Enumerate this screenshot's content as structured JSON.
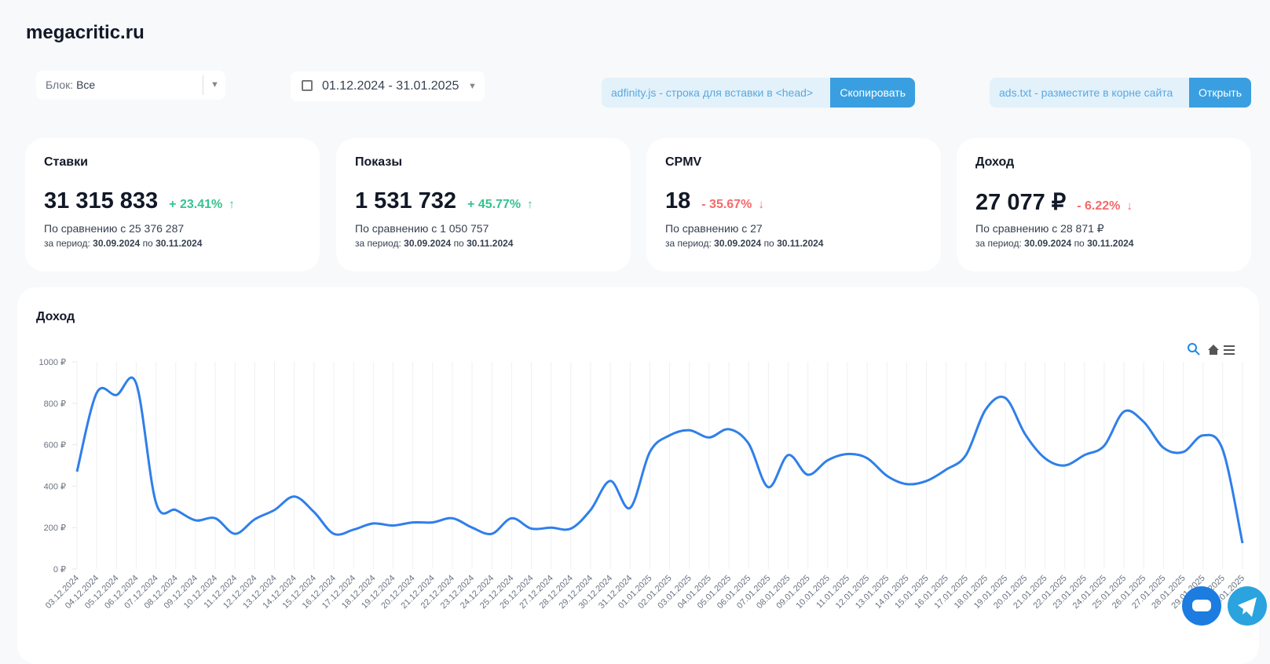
{
  "header": {
    "site": "megacritic.ru"
  },
  "filters": {
    "block_label": "Блок:",
    "block_value": "Все",
    "date_range": "01.12.2024 - 31.01.2025"
  },
  "snippets": [
    {
      "text": "adfinity.js - строка для вставки в <head>",
      "button": "Скопировать"
    },
    {
      "text": "ads.txt - разместите в корне сайта",
      "button": "Открыть"
    }
  ],
  "cards": [
    {
      "title": "Ставки",
      "value": "31 315 833",
      "change": "+ 23.41%",
      "trend": "up",
      "compare": "По сравнению с 25 376 287",
      "period_label": "за период:",
      "period_from": "30.09.2024",
      "period_sep": "по",
      "period_to": "30.11.2024"
    },
    {
      "title": "Показы",
      "value": "1 531 732",
      "change": "+ 45.77%",
      "trend": "up",
      "compare": "По сравнению с 1 050 757",
      "period_label": "за период:",
      "period_from": "30.09.2024",
      "period_sep": "по",
      "period_to": "30.11.2024"
    },
    {
      "title": "CPMV",
      "value": "18",
      "change": "- 35.67%",
      "trend": "down",
      "compare": "По сравнению с 27",
      "period_label": "за период:",
      "period_from": "30.09.2024",
      "period_sep": "по",
      "period_to": "30.11.2024"
    },
    {
      "title": "Доход",
      "value": "27 077 ₽",
      "change": "- 6.22%",
      "trend": "down",
      "compare": "По сравнению с 28 871 ₽",
      "period_label": "за период:",
      "period_from": "30.09.2024",
      "period_sep": "по",
      "period_to": "30.11.2024"
    }
  ],
  "chart_data": {
    "type": "line",
    "title": "Доход",
    "categories": [
      "03.12.2024",
      "04.12.2024",
      "05.12.2024",
      "06.12.2024",
      "07.12.2024",
      "08.12.2024",
      "09.12.2024",
      "10.12.2024",
      "11.12.2024",
      "12.12.2024",
      "13.12.2024",
      "14.12.2024",
      "15.12.2024",
      "16.12.2024",
      "17.12.2024",
      "18.12.2024",
      "19.12.2024",
      "20.12.2024",
      "21.12.2024",
      "22.12.2024",
      "23.12.2024",
      "24.12.2024",
      "25.12.2024",
      "26.12.2024",
      "27.12.2024",
      "28.12.2024",
      "29.12.2024",
      "30.12.2024",
      "31.12.2024",
      "01.01.2025",
      "02.01.2025",
      "03.01.2025",
      "04.01.2025",
      "05.01.2025",
      "06.01.2025",
      "07.01.2025",
      "08.01.2025",
      "09.01.2025",
      "10.01.2025",
      "11.01.2025",
      "12.01.2025",
      "13.01.2025",
      "14.01.2025",
      "15.01.2025",
      "16.01.2025",
      "17.01.2025",
      "18.01.2025",
      "19.01.2025",
      "20.01.2025",
      "21.01.2025",
      "22.01.2025",
      "23.01.2025",
      "24.01.2025",
      "25.01.2025",
      "26.01.2025",
      "27.01.2025",
      "28.01.2025",
      "29.01.2025",
      "30.01.2025",
      "31.01.2025"
    ],
    "series": [
      {
        "name": "Доход",
        "color": "#2f7fea",
        "values": [
          470,
          850,
          840,
          895,
          320,
          285,
          235,
          245,
          170,
          240,
          285,
          350,
          275,
          170,
          190,
          220,
          210,
          225,
          225,
          245,
          200,
          170,
          245,
          195,
          200,
          195,
          285,
          425,
          295,
          565,
          645,
          670,
          635,
          675,
          605,
          395,
          550,
          455,
          525,
          555,
          535,
          450,
          410,
          425,
          480,
          550,
          770,
          825,
          650,
          535,
          500,
          550,
          595,
          760,
          710,
          585,
          565,
          645,
          575,
          125
        ]
      }
    ],
    "ylim": [
      0,
      1000
    ],
    "yticks": [
      {
        "value": 0,
        "label": "0 ₽"
      },
      {
        "value": 200,
        "label": "200 ₽"
      },
      {
        "value": 400,
        "label": "400 ₽"
      },
      {
        "value": 600,
        "label": "600 ₽"
      },
      {
        "value": 800,
        "label": "800 ₽"
      },
      {
        "value": 1000,
        "label": "1000 ₽"
      }
    ],
    "grid": "x"
  }
}
